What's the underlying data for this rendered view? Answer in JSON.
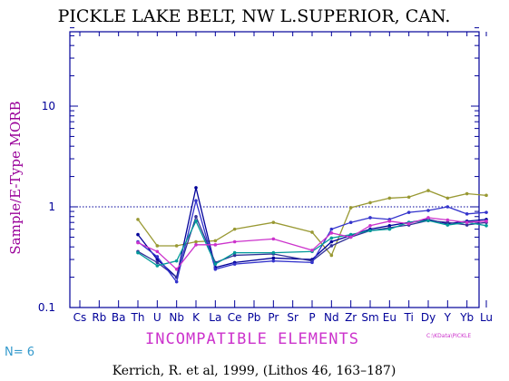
{
  "title": "PICKLE LAKE BELT, NW L.SUPERIOR, CAN.",
  "n_label": "N= 6",
  "citation": "Kerrich, R. et al, 1999, (Lithos 46, 163–187)",
  "legend_note": "C:\\KData\\PICKLE",
  "colors": {
    "axis": "#000099",
    "reference": "#000099"
  },
  "chart_data": {
    "type": "line",
    "title": "PICKLE LAKE BELT, NW L.SUPERIOR, CAN.",
    "xlabel": "INCOMPATIBLE ELEMENTS",
    "ylabel": "Sample/E-Type MORB",
    "yscale": "log",
    "ylim": [
      0.1,
      60
    ],
    "yticks": [
      0.1,
      1,
      10
    ],
    "ytick_labels": [
      "0.1",
      "1",
      "10"
    ],
    "reference_line": 1,
    "grid": false,
    "categories": [
      "Cs",
      "Rb",
      "Ba",
      "Th",
      "U",
      "Nb",
      "K",
      "La",
      "Ce",
      "Pb",
      "Pr",
      "Sr",
      "P",
      "Nd",
      "Zr",
      "Sm",
      "Eu",
      "Ti",
      "Dy",
      "Y",
      "Yb",
      "Lu"
    ],
    "series": [
      {
        "color": "#999933",
        "values": [
          null,
          null,
          null,
          0.75,
          0.41,
          0.41,
          0.45,
          0.46,
          0.6,
          null,
          0.7,
          null,
          0.56,
          0.33,
          0.98,
          1.1,
          1.22,
          1.25,
          1.45,
          1.22,
          1.35,
          1.3
        ]
      },
      {
        "color": "#000099",
        "values": [
          null,
          null,
          null,
          0.53,
          0.3,
          0.2,
          1.55,
          0.25,
          0.28,
          null,
          0.31,
          null,
          0.3,
          0.45,
          0.52,
          0.6,
          0.65,
          0.7,
          0.75,
          0.68,
          0.72,
          0.75
        ]
      },
      {
        "color": "#333399",
        "values": [
          null,
          null,
          null,
          0.36,
          0.28,
          0.2,
          0.8,
          0.28,
          0.33,
          null,
          0.34,
          null,
          0.29,
          0.41,
          0.5,
          0.58,
          0.62,
          0.66,
          0.73,
          0.7,
          0.66,
          0.7
        ]
      },
      {
        "color": "#3333cc",
        "values": [
          null,
          null,
          null,
          0.45,
          0.32,
          0.18,
          1.15,
          0.24,
          0.27,
          null,
          0.29,
          null,
          0.28,
          0.6,
          0.7,
          0.78,
          0.75,
          0.88,
          0.92,
          1.0,
          0.85,
          0.88
        ]
      },
      {
        "color": "#009999",
        "values": [
          null,
          null,
          null,
          0.35,
          0.26,
          0.29,
          0.72,
          0.27,
          0.35,
          null,
          0.35,
          null,
          0.36,
          0.49,
          0.53,
          0.58,
          0.6,
          0.7,
          0.73,
          0.66,
          0.7,
          0.65
        ]
      },
      {
        "color": "#cc33cc",
        "values": [
          null,
          null,
          null,
          0.44,
          0.36,
          0.24,
          0.42,
          0.42,
          0.45,
          null,
          0.48,
          null,
          0.37,
          0.55,
          0.5,
          0.65,
          0.72,
          0.68,
          0.78,
          0.74,
          0.7,
          0.72
        ]
      }
    ]
  }
}
